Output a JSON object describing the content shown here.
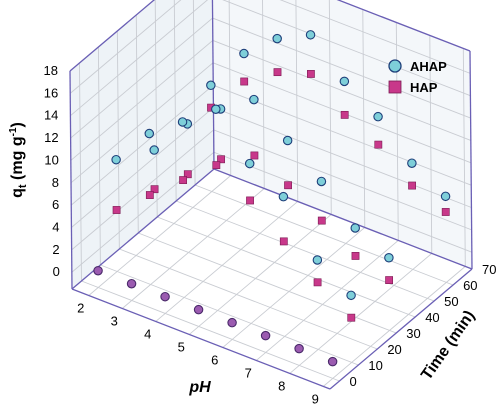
{
  "chart_data": {
    "type": "scatter",
    "projection": "3d",
    "title": "",
    "xlabel": "pH",
    "ylabel": "Time (min)",
    "zlabel_main": "q",
    "zlabel_sub": "t",
    "zlabel_units": " (mg g",
    "zlabel_sup": "-1",
    "zlabel_close": ")",
    "x_ticks": [
      "2",
      "3",
      "4",
      "5",
      "6",
      "7",
      "8",
      "9"
    ],
    "y_ticks": [
      "0",
      "10",
      "20",
      "30",
      "40",
      "50",
      "60",
      "70"
    ],
    "z_ticks": [
      "0",
      "2",
      "4",
      "6",
      "8",
      "10",
      "12",
      "14",
      "16",
      "18"
    ],
    "xlim": [
      1.5,
      9.2
    ],
    "ylim": [
      -5,
      70
    ],
    "zlim": [
      -1.5,
      18
    ],
    "grid": true,
    "legend_position": "top-right",
    "colors": {
      "AHAP": "#7ecfd9",
      "HAP": "#c8388a",
      "AHAP_edge": "#1e3f7a",
      "HAP_edge": "#7a1a52",
      "t0_marker": "#9b5bb0",
      "frame": "#6a5fb5",
      "grid": "#c9ccd2",
      "floor": "#ffffff"
    },
    "series": [
      {
        "name": "AHAP",
        "marker": "circle",
        "points": [
          [
            2,
            0,
            0
          ],
          [
            3,
            0,
            0
          ],
          [
            4,
            0,
            0
          ],
          [
            5,
            0,
            0
          ],
          [
            6,
            0,
            0
          ],
          [
            7,
            0,
            0
          ],
          [
            8,
            0,
            0
          ],
          [
            9,
            0,
            0
          ],
          [
            2,
            10,
            8.5
          ],
          [
            3,
            10,
            12.0
          ],
          [
            4,
            10,
            14.2
          ],
          [
            5,
            10,
            16.5
          ],
          [
            6,
            10,
            12.8
          ],
          [
            7,
            10,
            11.0
          ],
          [
            8,
            10,
            6.5
          ],
          [
            9,
            10,
            4.5
          ],
          [
            2,
            30,
            6.5
          ],
          [
            3,
            30,
            10.0
          ],
          [
            4,
            30,
            12.5
          ],
          [
            5,
            30,
            14.5
          ],
          [
            6,
            30,
            12.0
          ],
          [
            7,
            30,
            9.5
          ],
          [
            8,
            30,
            6.5
          ],
          [
            9,
            30,
            5.0
          ],
          [
            2,
            60,
            8.0
          ],
          [
            3,
            60,
            12.0
          ],
          [
            4,
            60,
            14.5
          ],
          [
            5,
            60,
            16.0
          ],
          [
            6,
            60,
            13.0
          ],
          [
            7,
            60,
            11.0
          ],
          [
            8,
            60,
            8.0
          ],
          [
            9,
            60,
            6.2
          ]
        ]
      },
      {
        "name": "HAP",
        "marker": "square",
        "points": [
          [
            2,
            10,
            4.0
          ],
          [
            3,
            10,
            6.5
          ],
          [
            4,
            10,
            9.0
          ],
          [
            5,
            10,
            11.5
          ],
          [
            6,
            10,
            9.5
          ],
          [
            7,
            10,
            7.0
          ],
          [
            8,
            10,
            4.5
          ],
          [
            9,
            10,
            2.5
          ],
          [
            2,
            30,
            3.0
          ],
          [
            3,
            30,
            5.5
          ],
          [
            4,
            30,
            8.0
          ],
          [
            5,
            30,
            9.5
          ],
          [
            6,
            30,
            8.0
          ],
          [
            7,
            30,
            6.0
          ],
          [
            8,
            30,
            4.0
          ],
          [
            9,
            30,
            3.0
          ],
          [
            2,
            60,
            6.0
          ],
          [
            3,
            60,
            9.5
          ],
          [
            4,
            60,
            11.5
          ],
          [
            5,
            60,
            12.5
          ],
          [
            6,
            60,
            10.0
          ],
          [
            7,
            60,
            8.5
          ],
          [
            8,
            60,
            6.0
          ],
          [
            9,
            60,
            4.8
          ]
        ]
      }
    ]
  }
}
